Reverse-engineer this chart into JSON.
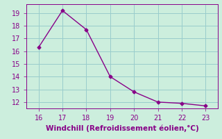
{
  "x": [
    16,
    17,
    18,
    19,
    20,
    21,
    22,
    23
  ],
  "y": [
    16.3,
    19.2,
    17.7,
    14.0,
    12.8,
    12.0,
    11.9,
    11.7
  ],
  "line_color": "#880088",
  "marker": "D",
  "marker_size": 2.5,
  "xlabel": "Windchill (Refroidissement éolien,°C)",
  "xlabel_fontsize": 7.5,
  "xlim": [
    15.5,
    23.5
  ],
  "ylim": [
    11.5,
    19.7
  ],
  "xticks": [
    16,
    17,
    18,
    19,
    20,
    21,
    22,
    23
  ],
  "yticks": [
    12,
    13,
    14,
    15,
    16,
    17,
    18,
    19
  ],
  "tick_fontsize": 7,
  "background_color": "#cceedd",
  "grid_color": "#99cccc",
  "line_width": 1.0
}
